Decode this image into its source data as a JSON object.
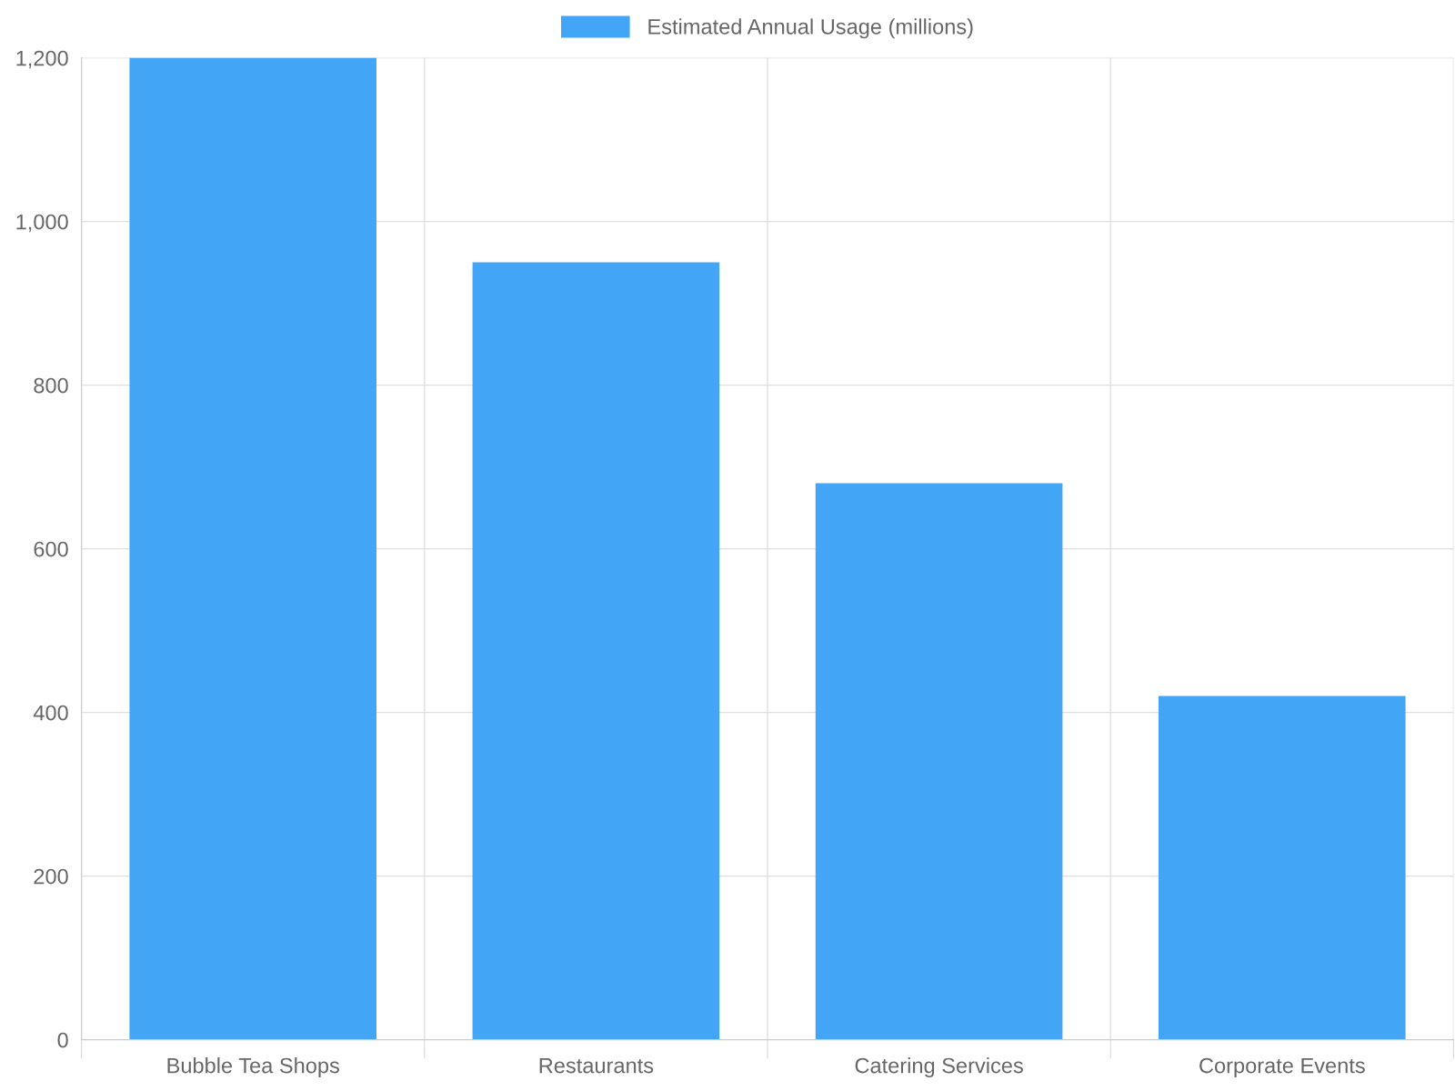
{
  "chart_data": {
    "type": "bar",
    "categories": [
      "Bubble Tea Shops",
      "Restaurants",
      "Catering Services",
      "Corporate Events"
    ],
    "series": [
      {
        "name": "Estimated Annual Usage (millions)",
        "color": "#42a5f5",
        "values": [
          1200,
          950,
          680,
          420
        ]
      }
    ],
    "ylim": [
      0,
      1200
    ],
    "yticks": [
      {
        "value": 0,
        "label": "0"
      },
      {
        "value": 200,
        "label": "200"
      },
      {
        "value": 400,
        "label": "400"
      },
      {
        "value": 600,
        "label": "600"
      },
      {
        "value": 800,
        "label": "800"
      },
      {
        "value": 1000,
        "label": "1,000"
      },
      {
        "value": 1200,
        "label": "1,200"
      }
    ],
    "grid": true,
    "legend": "top"
  }
}
